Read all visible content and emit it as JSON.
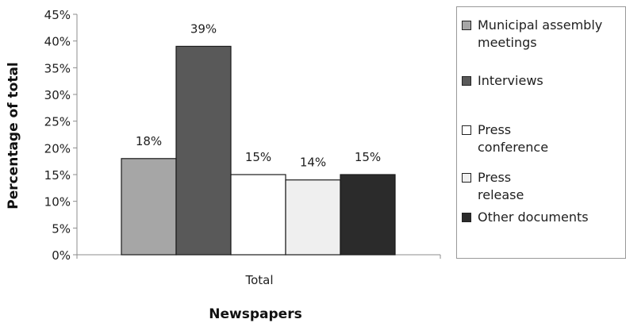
{
  "chart_data": {
    "type": "bar",
    "categories": [
      "Total"
    ],
    "series": [
      {
        "name": "Municipal assembly meetings",
        "values": [
          18
        ],
        "label": "18%",
        "color": "#a6a6a6"
      },
      {
        "name": "Interviews",
        "values": [
          39
        ],
        "label": "39%",
        "color": "#595959"
      },
      {
        "name": "Press conference",
        "values": [
          15
        ],
        "label": "15%",
        "color": "#ffffff"
      },
      {
        "name": "Press release",
        "values": [
          14
        ],
        "label": "14%",
        "color": "#efefef"
      },
      {
        "name": "Other documents",
        "values": [
          15
        ],
        "label": "15%",
        "color": "#2b2b2b"
      }
    ],
    "xlabel": "Newspapers",
    "ylabel": "Percentage of total",
    "ylim": [
      0,
      45
    ],
    "yticks": [
      "0%",
      "5%",
      "10%",
      "15%",
      "20%",
      "25%",
      "30%",
      "35%",
      "40%",
      "45%"
    ],
    "grid": false,
    "legend_position": "right"
  }
}
